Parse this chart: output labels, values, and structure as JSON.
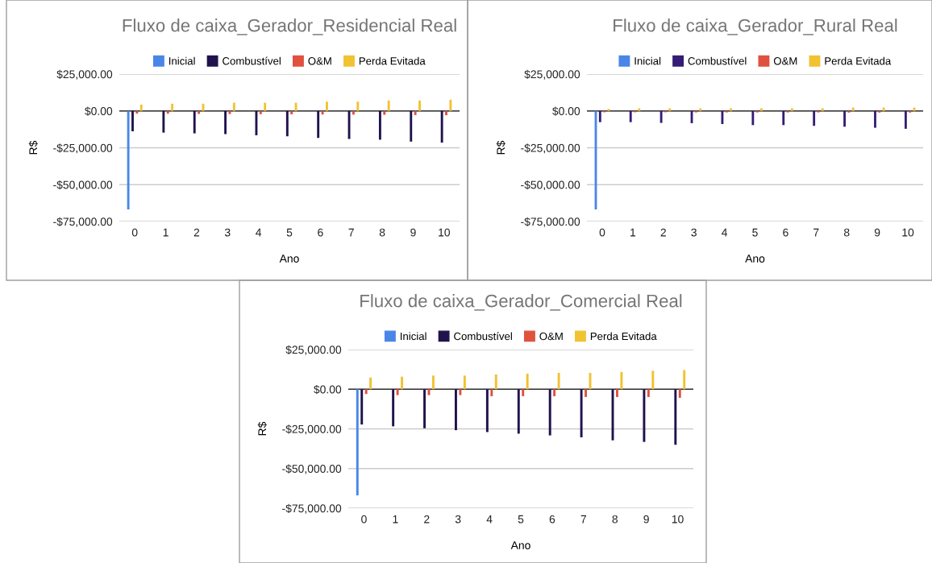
{
  "chart_data": [
    {
      "type": "bar",
      "title": "Fluxo de caixa_Gerador_Residencial Real",
      "xlabel": "Ano",
      "ylabel": "R$",
      "categories": [
        "0",
        "1",
        "2",
        "3",
        "4",
        "5",
        "6",
        "7",
        "8",
        "9",
        "10"
      ],
      "series": [
        {
          "name": "Inicial",
          "color": "#4a86e8",
          "values": [
            -66800,
            null,
            null,
            null,
            null,
            null,
            null,
            null,
            null,
            null,
            null
          ]
        },
        {
          "name": "Combustível",
          "color": "#20124d",
          "values": [
            -13800,
            -14700,
            -15200,
            -15700,
            -16500,
            -17200,
            -18300,
            -19000,
            -19500,
            -20800,
            -21500
          ]
        },
        {
          "name": "O&M",
          "color": "#e0513f",
          "values": [
            -1800,
            -1900,
            -2000,
            -2100,
            -2200,
            -2300,
            -2400,
            -2500,
            -2600,
            -2800,
            -2900
          ]
        },
        {
          "name": "Perda Evitada",
          "color": "#f1c232",
          "values": [
            4300,
            4900,
            4900,
            5600,
            5600,
            5600,
            6300,
            6300,
            7100,
            7100,
            7600
          ]
        }
      ],
      "ylim": [
        -75000,
        25000
      ],
      "yticks": [
        {
          "value": -75000,
          "label": "-$75,000.00"
        },
        {
          "value": -50000,
          "label": "-$50,000.00"
        },
        {
          "value": -25000,
          "label": "-$25,000.00"
        },
        {
          "value": 0,
          "label": "$0.00"
        },
        {
          "value": 25000,
          "label": "$25,000.00"
        }
      ],
      "grid": "y",
      "legend": "top"
    },
    {
      "type": "bar",
      "title": "Fluxo de caixa_Gerador_Rural Real",
      "xlabel": "Ano",
      "ylabel": "R$",
      "categories": [
        "0",
        "1",
        "2",
        "3",
        "4",
        "5",
        "6",
        "7",
        "8",
        "9",
        "10"
      ],
      "series": [
        {
          "name": "Inicial",
          "color": "#4a86e8",
          "values": [
            -66800,
            null,
            null,
            null,
            null,
            null,
            null,
            null,
            null,
            null,
            null
          ]
        },
        {
          "name": "Combustível",
          "color": "#351c75",
          "values": [
            -7600,
            -7600,
            -8100,
            -8300,
            -8900,
            -9600,
            -9600,
            -10100,
            -10700,
            -11400,
            -12100
          ]
        },
        {
          "name": "O&M",
          "color": "#e0513f",
          "values": [
            -900,
            -900,
            -900,
            -1000,
            -1000,
            -1000,
            -1000,
            -1000,
            -1100,
            -1100,
            -1100
          ]
        },
        {
          "name": "Perda Evitada",
          "color": "#f1c232",
          "values": [
            1400,
            1800,
            1800,
            1800,
            1800,
            1800,
            1800,
            1800,
            2300,
            2300,
            2300
          ]
        }
      ],
      "ylim": [
        -75000,
        25000
      ],
      "yticks": [
        {
          "value": -75000,
          "label": "-$75,000.00"
        },
        {
          "value": -50000,
          "label": "-$50,000.00"
        },
        {
          "value": -25000,
          "label": "-$25,000.00"
        },
        {
          "value": 0,
          "label": "$0.00"
        },
        {
          "value": 25000,
          "label": "$25,000.00"
        }
      ],
      "grid": "y",
      "legend": "top"
    },
    {
      "type": "bar",
      "title": "Fluxo de caixa_Gerador_Comercial Real",
      "xlabel": "Ano",
      "ylabel": "R$",
      "categories": [
        "0",
        "1",
        "2",
        "3",
        "4",
        "5",
        "6",
        "7",
        "8",
        "9",
        "10"
      ],
      "series": [
        {
          "name": "Inicial",
          "color": "#4a86e8",
          "values": [
            -66900,
            null,
            null,
            null,
            null,
            null,
            null,
            null,
            null,
            null,
            null
          ]
        },
        {
          "name": "Combustível",
          "color": "#20124d",
          "values": [
            -22200,
            -23400,
            -24600,
            -25800,
            -27000,
            -28000,
            -29100,
            -30300,
            -32200,
            -33200,
            -35000
          ]
        },
        {
          "name": "O&M",
          "color": "#e0513f",
          "values": [
            -3000,
            -3700,
            -3700,
            -3700,
            -4400,
            -4400,
            -4400,
            -4900,
            -4900,
            -4900,
            -5400
          ]
        },
        {
          "name": "Perda Evitada",
          "color": "#f1c232",
          "values": [
            7400,
            7900,
            8600,
            8600,
            9300,
            9800,
            10300,
            10300,
            10900,
            11600,
            12100
          ]
        }
      ],
      "ylim": [
        -75000,
        25000
      ],
      "yticks": [
        {
          "value": -75000,
          "label": "-$75,000.00"
        },
        {
          "value": -50000,
          "label": "-$50,000.00"
        },
        {
          "value": -25000,
          "label": "-$25,000.00"
        },
        {
          "value": 0,
          "label": "$0.00"
        },
        {
          "value": 25000,
          "label": "$25,000.00"
        }
      ],
      "grid": "y",
      "legend": "top"
    }
  ]
}
